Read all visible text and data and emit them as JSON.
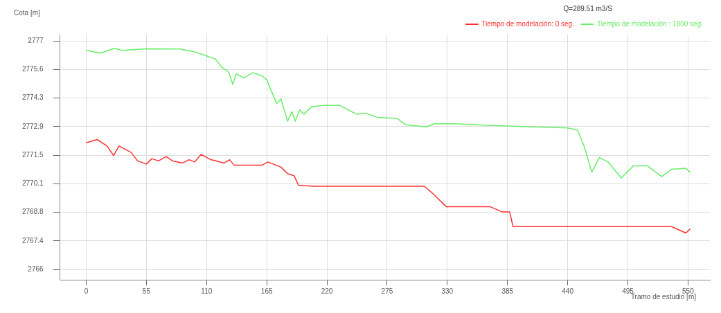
{
  "chart_data": {
    "type": "line",
    "xlabel": "Tramo de estudio [m]",
    "ylabel": "Cota [m]",
    "legend_title": "Q=289.51 m3/S",
    "xlim": [
      -24,
      570
    ],
    "xticks": [
      0,
      55,
      110,
      165,
      220,
      275,
      330,
      385,
      440,
      495,
      550
    ],
    "ylim": [
      2765.5,
      2777.3
    ],
    "yticks": [
      2766,
      {
        "value": 2767.375,
        "label": "2767.4"
      },
      {
        "value": 2768.75,
        "label": "2768.8"
      },
      {
        "value": 2770.125,
        "label": "2770.1"
      },
      2771.5,
      {
        "value": 2772.875,
        "label": "2772.9"
      },
      {
        "value": 2774.25,
        "label": "2774.3"
      },
      {
        "value": 2775.625,
        "label": "2775.6"
      },
      2777
    ],
    "grid": true,
    "legend": "top right",
    "marker": "none",
    "line_style": "solid",
    "series": [
      {
        "name": "Tiempo de modelación: 0 seg.",
        "color": "#ff3030",
        "x": [
          0,
          10,
          19,
          25,
          30,
          41,
          47,
          55,
          60,
          66,
          73,
          79,
          88,
          94,
          99,
          105,
          114,
          126,
          131,
          135,
          161,
          166,
          178,
          184,
          190,
          194,
          208,
          309,
          318,
          329,
          369,
          380,
          387,
          390,
          535,
          548,
          552
        ],
        "values": [
          2772.09,
          2772.25,
          2771.94,
          2771.48,
          2771.94,
          2771.63,
          2771.22,
          2771.07,
          2771.33,
          2771.22,
          2771.43,
          2771.22,
          2771.12,
          2771.28,
          2771.17,
          2771.53,
          2771.28,
          2771.12,
          2771.28,
          2771.02,
          2771.02,
          2771.17,
          2770.92,
          2770.61,
          2770.51,
          2770.05,
          2770.0,
          2770.0,
          2769.59,
          2769.02,
          2769.02,
          2768.77,
          2768.77,
          2768.06,
          2768.06,
          2767.75,
          2767.95
        ]
      },
      {
        "name": "Tiempo de modelación : 1800 seg.",
        "color": "#66ee66",
        "x": [
          0,
          13,
          26,
          32,
          55,
          86,
          99,
          109,
          118,
          124,
          130,
          134,
          137,
          144,
          152,
          161,
          165,
          174,
          178,
          184,
          188,
          191,
          195,
          199,
          206,
          217,
          232,
          247,
          255,
          266,
          284,
          292,
          311,
          318,
          337,
          380,
          410,
          440,
          449,
          455,
          462,
          469,
          477,
          489,
          500,
          513,
          526,
          535,
          548,
          552
        ],
        "values": [
          2776.54,
          2776.41,
          2776.64,
          2776.54,
          2776.62,
          2776.61,
          2776.47,
          2776.29,
          2776.13,
          2775.72,
          2775.52,
          2774.9,
          2775.42,
          2775.21,
          2775.47,
          2775.31,
          2775.12,
          2773.98,
          2774.2,
          2773.13,
          2773.59,
          2773.13,
          2773.68,
          2773.47,
          2773.83,
          2773.89,
          2773.89,
          2773.47,
          2773.52,
          2773.32,
          2773.27,
          2772.96,
          2772.86,
          2773.01,
          2773.01,
          2772.91,
          2772.86,
          2772.81,
          2772.71,
          2771.94,
          2770.68,
          2771.38,
          2771.17,
          2770.4,
          2770.98,
          2770.98,
          2770.46,
          2770.82,
          2770.87,
          2770.67
        ]
      }
    ]
  }
}
